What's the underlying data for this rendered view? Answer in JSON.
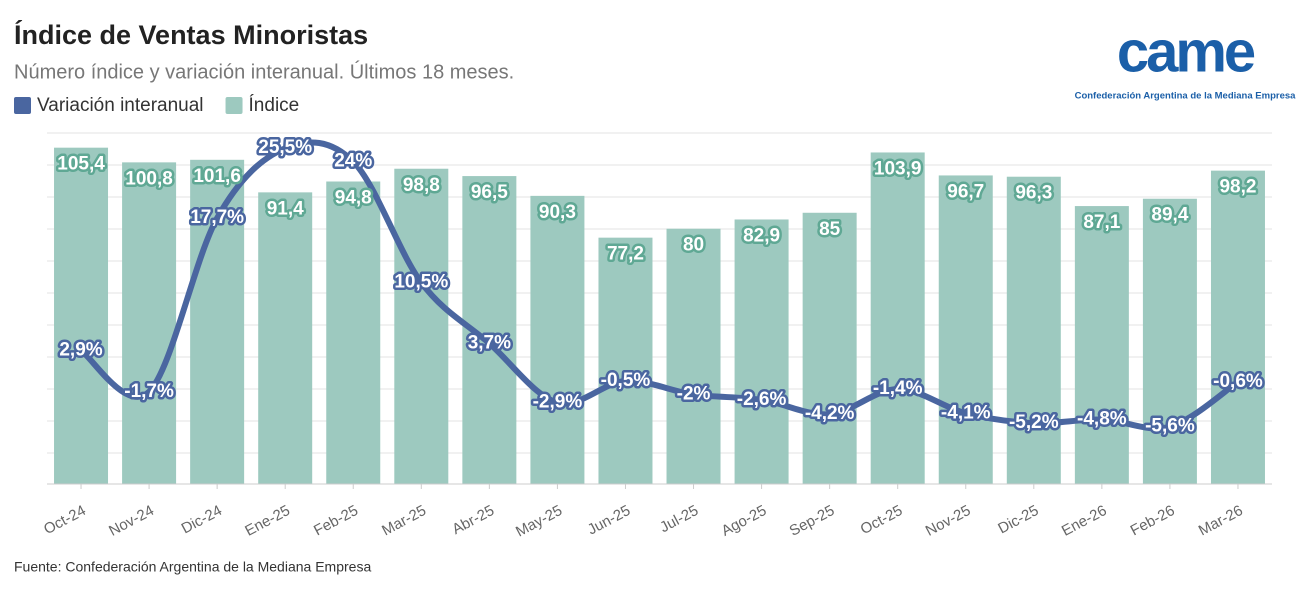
{
  "chart_data": {
    "type": "bar-line",
    "title": "Índice de Ventas Minoristas",
    "subtitle": "Número índice y variación interanual. Últimos 18 meses.",
    "source": "Fuente: Confederación Argentina de la Mediana Empresa",
    "logo": {
      "mark": "came",
      "caption": "Confederación Argentina de la Mediana Empresa"
    },
    "categories": [
      "Oct-24",
      "Nov-24",
      "Dic-24",
      "Ene-25",
      "Feb-25",
      "Mar-25",
      "Abr-25",
      "May-25",
      "Jun-25",
      "Jul-25",
      "Ago-25",
      "Sep-25",
      "Oct-25",
      "Nov-25",
      "Dic-25",
      "Ene-26",
      "Feb-26",
      "Mar-26"
    ],
    "ylim": [
      0,
      110
    ],
    "y2lim": [
      -12,
      27.2
    ],
    "series": [
      {
        "name": "Variación interanual",
        "color": "#4a66a0",
        "axis": "y2",
        "kind": "line",
        "values": [
          2.9,
          -1.7,
          17.7,
          25.5,
          24,
          10.5,
          3.7,
          -2.9,
          -0.5,
          -2,
          -2.6,
          -4.2,
          -1.4,
          -4.1,
          -5.2,
          -4.8,
          -5.6,
          -0.6
        ],
        "value_labels": [
          "2,9%",
          "-1,7%",
          "17,7%",
          "25,5%",
          "24%",
          "10,5%",
          "3,7%",
          "-2,9%",
          "-0,5%",
          "-2%",
          "-2,6%",
          "-4,2%",
          "-1,4%",
          "-4,1%",
          "-5,2%",
          "-4,8%",
          "-5,6%",
          "-0,6%"
        ]
      },
      {
        "name": "Índice",
        "color": "#9dc9bf",
        "kind": "bar",
        "values": [
          105.4,
          100.8,
          101.6,
          91.4,
          94.8,
          98.8,
          96.5,
          90.3,
          77.2,
          80,
          82.9,
          85,
          103.9,
          96.7,
          96.3,
          87.1,
          89.4,
          98.2
        ],
        "value_labels": [
          "105,4",
          "100,8",
          "101,6",
          "91,4",
          "94,8",
          "98,8",
          "96,5",
          "90,3",
          "77,2",
          "80",
          "82,9",
          "85",
          "103,9",
          "96,7",
          "96,3",
          "87,1",
          "89,4",
          "98,2"
        ]
      }
    ]
  }
}
